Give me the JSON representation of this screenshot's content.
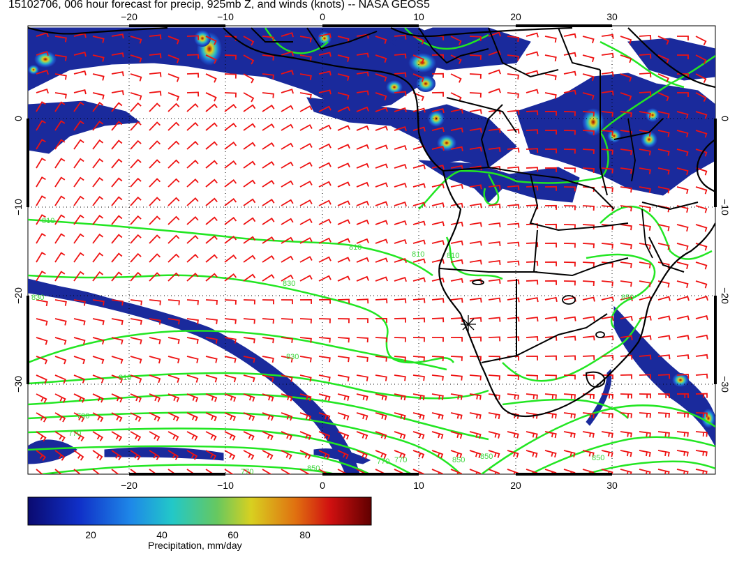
{
  "title": "15102706, 006 hour forecast for precip, 925mb Z, and winds (knots) -- NASA GEOS5",
  "map": {
    "lon_ticks": [
      "−20",
      "−10",
      "0",
      "10",
      "20",
      "30"
    ],
    "lat_ticks": [
      "0",
      "−10",
      "−20",
      "−30"
    ],
    "contour_labels": [
      "810",
      "810",
      "810",
      "830",
      "830",
      "810",
      "810",
      "830",
      "790",
      "770",
      "770",
      "770",
      "770",
      "850",
      "850",
      "850",
      "850",
      "850"
    ]
  },
  "colorbar": {
    "ticks": [
      "20",
      "40",
      "60",
      "80"
    ],
    "label": "Precipitation, mm/day"
  },
  "colors": {
    "precip_low": "#1a2a9c",
    "precip_high": "#7a0000",
    "contour": "#22e622",
    "wind": "#ee1111",
    "coast": "#000000"
  }
}
